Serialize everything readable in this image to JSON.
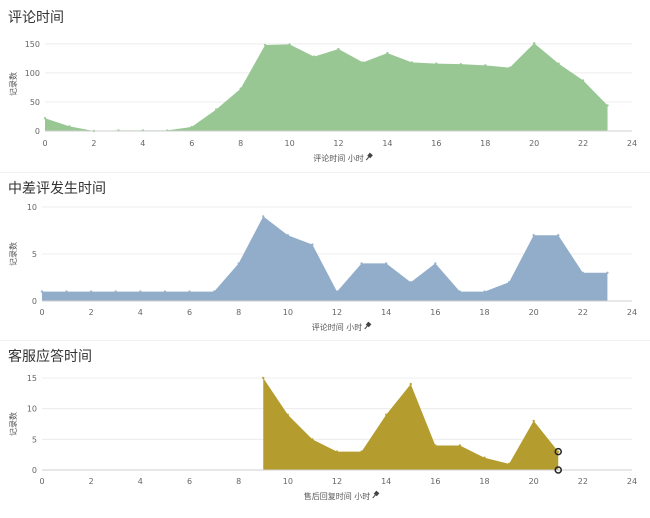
{
  "chart_data": [
    {
      "type": "area",
      "title": "评论时间",
      "xlabel": "评论时间 小时",
      "ylabel": "记录数",
      "xlim": [
        0,
        24
      ],
      "ylim": [
        0,
        160
      ],
      "xticks": [
        0,
        2,
        4,
        6,
        8,
        10,
        12,
        14,
        16,
        18,
        20,
        22,
        24
      ],
      "yticks": [
        0,
        50,
        100,
        150
      ],
      "color": "#98c794",
      "grid": true,
      "series": [
        {
          "x": [
            0,
            1,
            2,
            3,
            4,
            5,
            6,
            7,
            8,
            9,
            10,
            11,
            12,
            13,
            14,
            15,
            16,
            17,
            18,
            19,
            20,
            21,
            22,
            23
          ],
          "values": [
            22,
            8,
            0,
            1,
            1,
            1,
            7,
            37,
            73,
            148,
            149,
            128,
            141,
            118,
            134,
            118,
            116,
            115,
            113,
            109,
            151,
            116,
            87,
            44
          ]
        }
      ]
    },
    {
      "type": "area",
      "title": "中差评发生时间",
      "xlabel": "评论时间 小时",
      "ylabel": "记录数",
      "xlim": [
        0,
        24
      ],
      "ylim": [
        0,
        10
      ],
      "xticks": [
        0,
        2,
        4,
        6,
        8,
        10,
        12,
        14,
        16,
        18,
        20,
        22,
        24
      ],
      "yticks": [
        0,
        5,
        10
      ],
      "color": "#92adc9",
      "grid": true,
      "series": [
        {
          "x": [
            0,
            1,
            2,
            3,
            4,
            5,
            6,
            7,
            8,
            9,
            10,
            11,
            12,
            13,
            14,
            15,
            16,
            17,
            18,
            19,
            20,
            21,
            22,
            23
          ],
          "values": [
            1,
            1,
            1,
            1,
            1,
            1,
            1,
            1,
            4,
            9,
            7,
            6,
            1,
            4,
            4,
            2,
            4,
            1,
            1,
            2,
            7,
            7,
            3,
            3
          ]
        }
      ]
    },
    {
      "type": "area",
      "title": "客服应答时间",
      "xlabel": "售后回复时间 小时",
      "ylabel": "记录数",
      "xlim": [
        0,
        24
      ],
      "ylim": [
        0,
        15
      ],
      "xticks": [
        0,
        2,
        4,
        6,
        8,
        10,
        12,
        14,
        16,
        18,
        20,
        22,
        24
      ],
      "yticks": [
        0,
        5,
        10,
        15
      ],
      "color": "#b59c2e",
      "grid": true,
      "series": [
        {
          "x": [
            9,
            10,
            11,
            12,
            13,
            14,
            15,
            16,
            17,
            18,
            19,
            20,
            21
          ],
          "values": [
            15,
            9,
            5,
            3,
            3,
            9,
            14,
            4,
            4,
            2,
            1,
            8,
            3
          ]
        }
      ]
    }
  ]
}
